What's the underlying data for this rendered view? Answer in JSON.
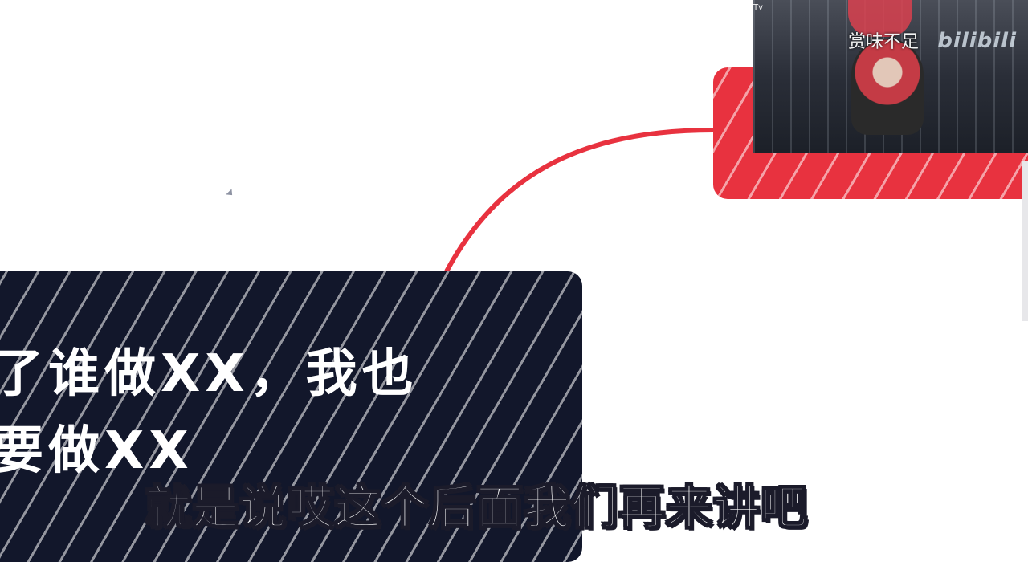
{
  "mindmap": {
    "dark_node_text": "了谁做XX，我也\n要做XX",
    "red_node_text": ""
  },
  "webcam": {
    "watermark": "赏味不足",
    "brand": "bilibili",
    "tv_label": "Tv"
  },
  "subtitle": "就是说哎这个后面我们再来讲吧",
  "colors": {
    "dark_node": "#12172b",
    "red_node": "#e8323f",
    "connector": "#e8323f"
  }
}
